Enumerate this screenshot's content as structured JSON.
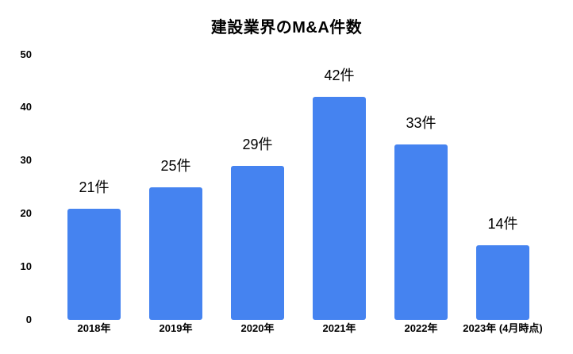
{
  "chart_data": {
    "type": "bar",
    "title": "建設業界のM&A件数",
    "categories": [
      "2018年",
      "2019年",
      "2020年",
      "2021年",
      "2022年",
      "2023年 (4月時点)"
    ],
    "values": [
      21,
      25,
      29,
      42,
      33,
      14
    ],
    "bar_labels": [
      "21件",
      "25件",
      "29件",
      "42件",
      "33件",
      "14件"
    ],
    "unit_suffix": "件",
    "xlabel": "",
    "ylabel": "",
    "ylim": [
      0,
      50
    ],
    "yticks": [
      0,
      10,
      20,
      30,
      40,
      50
    ],
    "grid": "off",
    "legend": "none",
    "bar_color": "#4583F0",
    "text_color": "#000000",
    "background_color": "#FFFFFF"
  }
}
